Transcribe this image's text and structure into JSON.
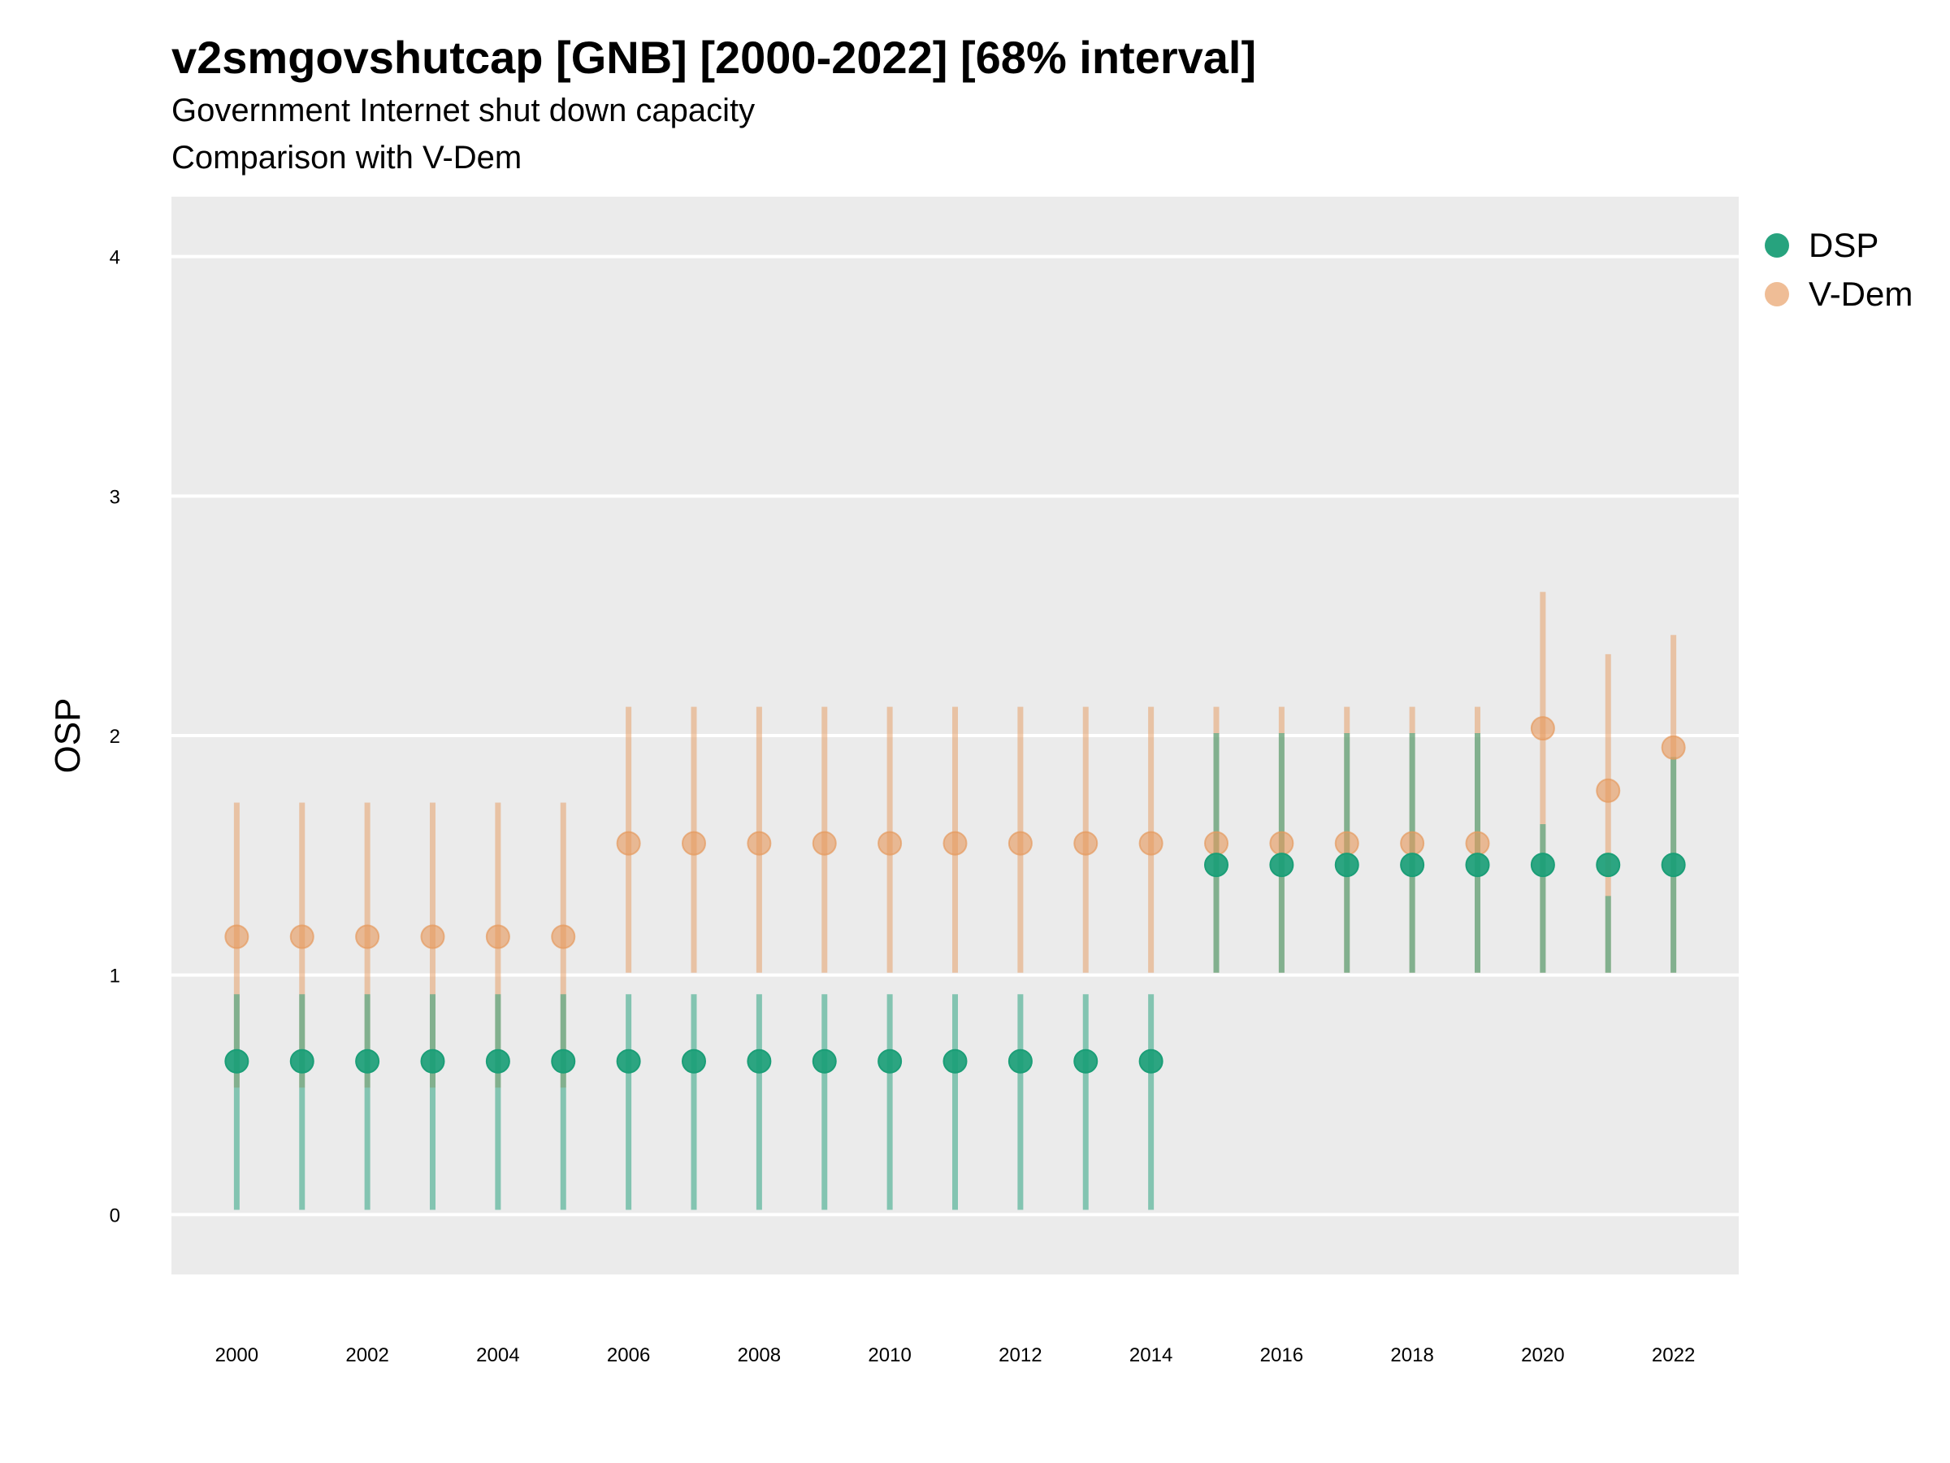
{
  "header": {
    "title": "v2smgovshutcap [GNB] [2000-2022] [68% interval]",
    "subtitle_1": "Government Internet shut down capacity",
    "subtitle_2": "Comparison with V-Dem"
  },
  "colors": {
    "panel": "#ebebeb",
    "gridline": "#ffffff",
    "dsp": "#1b9e77",
    "vdem": "#e69a5e"
  },
  "chart_data": {
    "type": "scatter",
    "title": "v2smgovshutcap [GNB] [2000-2022] [68% interval]",
    "subtitle": "Government Internet shut down capacity / Comparison with V-Dem",
    "xlabel": "",
    "ylabel": "OSP",
    "xlim": [
      1999,
      2023
    ],
    "ylim": [
      -0.25,
      4.25
    ],
    "y_ticks": [
      0,
      1,
      2,
      3,
      4
    ],
    "x_ticks": [
      2000,
      2002,
      2004,
      2006,
      2008,
      2010,
      2012,
      2014,
      2016,
      2018,
      2020,
      2022
    ],
    "grid": true,
    "legend_position": "right-top",
    "x": [
      2000,
      2001,
      2002,
      2003,
      2004,
      2005,
      2006,
      2007,
      2008,
      2009,
      2010,
      2011,
      2012,
      2013,
      2014,
      2015,
      2016,
      2017,
      2018,
      2019,
      2020,
      2021,
      2022
    ],
    "series": [
      {
        "name": "DSP",
        "color": "#1b9e77",
        "values": [
          0.64,
          0.64,
          0.64,
          0.64,
          0.64,
          0.64,
          0.64,
          0.64,
          0.64,
          0.64,
          0.64,
          0.64,
          0.64,
          0.64,
          0.64,
          1.46,
          1.46,
          1.46,
          1.46,
          1.46,
          1.46,
          1.46,
          1.46
        ],
        "lower": [
          0.02,
          0.02,
          0.02,
          0.02,
          0.02,
          0.02,
          0.02,
          0.02,
          0.02,
          0.02,
          0.02,
          0.02,
          0.02,
          0.02,
          0.02,
          1.01,
          1.01,
          1.01,
          1.01,
          1.01,
          1.01,
          1.01,
          1.01
        ],
        "upper": [
          0.92,
          0.92,
          0.92,
          0.92,
          0.92,
          0.92,
          0.92,
          0.92,
          0.92,
          0.92,
          0.92,
          0.92,
          0.92,
          0.92,
          0.92,
          2.01,
          2.01,
          2.01,
          2.01,
          2.01,
          1.63,
          1.33,
          1.91
        ]
      },
      {
        "name": "V-Dem",
        "color": "#e69a5e",
        "values": [
          1.16,
          1.16,
          1.16,
          1.16,
          1.16,
          1.16,
          1.55,
          1.55,
          1.55,
          1.55,
          1.55,
          1.55,
          1.55,
          1.55,
          1.55,
          1.55,
          1.55,
          1.55,
          1.55,
          1.55,
          2.03,
          1.77,
          1.95
        ],
        "lower": [
          0.53,
          0.53,
          0.53,
          0.53,
          0.53,
          0.53,
          1.01,
          1.01,
          1.01,
          1.01,
          1.01,
          1.01,
          1.01,
          1.01,
          1.01,
          1.01,
          1.01,
          1.01,
          1.01,
          1.01,
          1.01,
          1.01,
          1.01
        ],
        "upper": [
          1.72,
          1.72,
          1.72,
          1.72,
          1.72,
          1.72,
          2.12,
          2.12,
          2.12,
          2.12,
          2.12,
          2.12,
          2.12,
          2.12,
          2.12,
          2.12,
          2.12,
          2.12,
          2.12,
          2.12,
          2.6,
          2.34,
          2.42
        ]
      }
    ]
  }
}
